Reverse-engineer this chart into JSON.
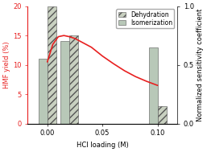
{
  "bar_positions": [
    0.0,
    0.02,
    0.1
  ],
  "dehydration_values": [
    20,
    15,
    3
  ],
  "isomerization_values": [
    11,
    14,
    13
  ],
  "bar_width": 0.008,
  "dehydration_color": "#c8d0c0",
  "dehydration_hatch": "////",
  "isomerization_color": "#b8c8b8",
  "isomerization_hatch": "",
  "left_ylabel": "HMF yield (%)",
  "left_ylabel_color": "#e82020",
  "xlabel": "HCl loading (M)",
  "right_ylabel": "Normalized sensitivity coefficient",
  "ylim_left": [
    0,
    20
  ],
  "ylim_right": [
    0.0,
    1.0
  ],
  "xticks": [
    0.0,
    0.05,
    0.1
  ],
  "red_line_x": [
    0.0,
    0.005,
    0.01,
    0.015,
    0.02,
    0.025,
    0.03,
    0.04,
    0.05,
    0.06,
    0.07,
    0.08,
    0.09,
    0.1
  ],
  "red_line_y": [
    10.5,
    13.5,
    14.8,
    15.0,
    14.8,
    14.5,
    14.0,
    13.0,
    11.5,
    10.2,
    9.0,
    8.0,
    7.2,
    6.5
  ],
  "background_color": "#ffffff",
  "legend_labels": [
    "Dehydration",
    "Isomerization"
  ],
  "axis_fontsize": 6,
  "tick_fontsize": 6,
  "figsize": [
    2.57,
    1.89
  ],
  "dpi": 100
}
